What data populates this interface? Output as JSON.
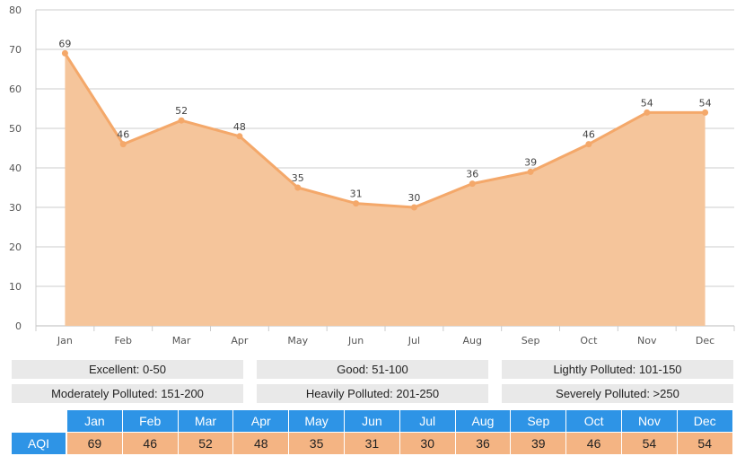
{
  "chart_data": {
    "type": "area",
    "categories": [
      "Jan",
      "Feb",
      "Mar",
      "Apr",
      "May",
      "Jun",
      "Jul",
      "Aug",
      "Sep",
      "Oct",
      "Nov",
      "Dec"
    ],
    "series": [
      {
        "values": [
          69,
          46,
          52,
          48,
          35,
          31,
          30,
          36,
          39,
          46,
          54,
          54
        ]
      }
    ],
    "ylim": [
      0,
      80
    ],
    "yticks": [
      0,
      10,
      20,
      30,
      40,
      50,
      60,
      70,
      80
    ],
    "grid": true,
    "data_labels": true,
    "colors": {
      "line": "#f4a86a",
      "fill": "#f5c59b",
      "grid": "#cccccc"
    }
  },
  "legend": {
    "items": [
      "Excellent: 0-50",
      "Good: 51-100",
      "Lightly Polluted: 101-150",
      "Moderately Polluted: 151-200",
      "Heavily Polluted: 201-250",
      "Severely Polluted: >250"
    ]
  },
  "table": {
    "row_label": "AQI",
    "months": [
      "Jan",
      "Feb",
      "Mar",
      "Apr",
      "May",
      "Jun",
      "Jul",
      "Aug",
      "Sep",
      "Oct",
      "Nov",
      "Dec"
    ],
    "values": [
      "69",
      "46",
      "52",
      "48",
      "35",
      "31",
      "30",
      "36",
      "39",
      "46",
      "54",
      "54"
    ],
    "colors": {
      "header": "#2e94e6",
      "value": "#f4b483"
    }
  }
}
